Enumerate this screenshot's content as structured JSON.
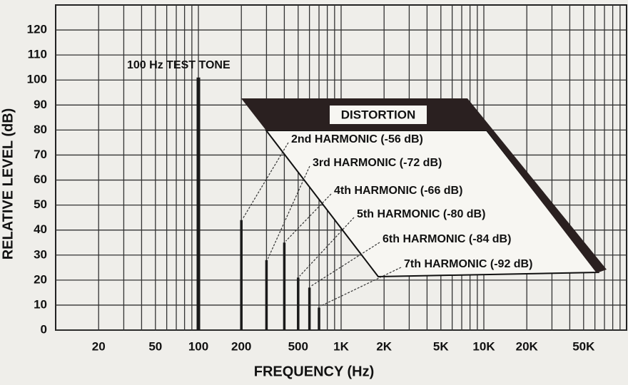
{
  "chart_data": {
    "type": "bar",
    "x_label": "FREQUENCY (Hz)",
    "y_label": "RELATIVE LEVEL (dB)",
    "xscale": "log",
    "xlim": [
      10,
      100000
    ],
    "ylim": [
      0,
      130
    ],
    "yticks": [
      0,
      10,
      20,
      30,
      40,
      50,
      60,
      70,
      80,
      90,
      100,
      110,
      120
    ],
    "xticks": [
      20,
      50,
      100,
      200,
      500,
      {
        "value": 1000,
        "label": "1K"
      },
      {
        "value": 2000,
        "label": "2K"
      },
      {
        "value": 5000,
        "label": "5K"
      },
      {
        "value": 10000,
        "label": "10K"
      },
      {
        "value": 20000,
        "label": "20K"
      },
      {
        "value": 50000,
        "label": "50K"
      }
    ],
    "xgrid": [
      20,
      30,
      40,
      50,
      60,
      70,
      80,
      90,
      100,
      200,
      300,
      400,
      500,
      600,
      700,
      800,
      900,
      1000,
      2000,
      3000,
      4000,
      5000,
      6000,
      7000,
      8000,
      9000,
      10000,
      20000,
      30000,
      40000,
      50000,
      60000,
      70000,
      80000,
      90000
    ],
    "grid": true,
    "color": "#1a1a1a",
    "x": [
      100,
      200,
      300,
      400,
      500,
      600,
      700
    ],
    "values": [
      101,
      44,
      28,
      35,
      21,
      17,
      9
    ],
    "labels": [
      "100 Hz TEST TONE",
      "2nd HARMONIC (-56 dB)",
      "3rd HARMONIC (-72 dB)",
      "4th HARMONIC (-66 dB)",
      "5th HARMONIC (-80 dB)",
      "6th HARMONIC (-84 dB)",
      "7th HARMONIC (-92 dB)"
    ],
    "banner": "DISTORTION"
  }
}
